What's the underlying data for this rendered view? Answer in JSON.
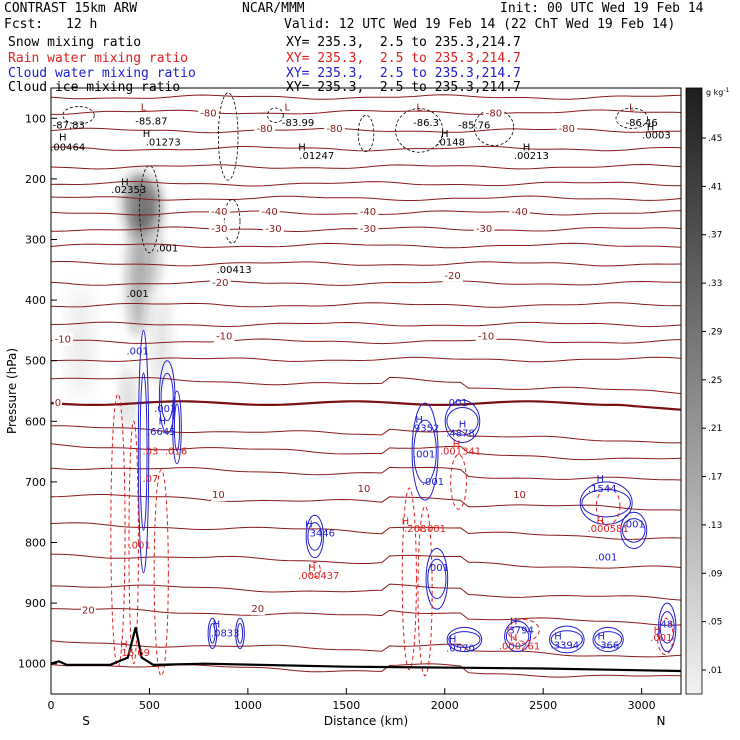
{
  "header": {
    "model": "CONTRAST 15km ARW",
    "org": "NCAR/MMM",
    "init": "Init: 00 UTC Wed 19 Feb 14",
    "fcst_label": "Fcst:",
    "fcst_value": "12 h",
    "valid": "Valid: 12 UTC Wed 19 Feb 14 (22 ChT Wed 19 Feb 14)",
    "legend": [
      {
        "label": "Snow mixing ratio",
        "xy": "XY= 235.3,  2.5 to 235.3,214.7",
        "color": "#000000"
      },
      {
        "label": "Rain water mixing ratio",
        "xy": "XY= 235.3,  2.5 to 235.3,214.7",
        "color": "#e02020"
      },
      {
        "label": "Cloud water mixing ratio",
        "xy": "XY= 235.3,  2.5 to 235.3,214.7",
        "color": "#2020d0"
      },
      {
        "label": "Cloud ice mixing ratio",
        "xy": "XY= 235.3,  2.5 to 235.3,214.7",
        "color": "#000000"
      }
    ]
  },
  "chart_data": {
    "type": "contour cross-section",
    "xlabel": "Distance (km)",
    "ylabel": "Pressure (hPa)",
    "xlim": [
      0,
      3200
    ],
    "ylim": [
      1050,
      50
    ],
    "x_ticks": [
      0,
      500,
      1000,
      1500,
      2000,
      2500,
      3000
    ],
    "y_ticks": [
      100,
      200,
      300,
      400,
      500,
      600,
      700,
      800,
      900,
      1000
    ],
    "x_end_labels": {
      "left": "S",
      "right": "N"
    },
    "colorbar": {
      "unit": "g kg",
      "unit_sup": "-1",
      "ticks": [
        ".45",
        ".41",
        ".37",
        ".33",
        ".29",
        ".25",
        ".21",
        ".17",
        ".13",
        ".09",
        ".05",
        ".01"
      ]
    },
    "temperature_labels": [
      {
        "text": "-80",
        "x": 800,
        "p": 92
      },
      {
        "text": "-80",
        "x": 1085,
        "p": 118
      },
      {
        "text": "-80",
        "x": 1440,
        "p": 118
      },
      {
        "text": "-80",
        "x": 2250,
        "p": 92
      },
      {
        "text": "-80",
        "x": 2620,
        "p": 118
      },
      {
        "text": "-40",
        "x": 855,
        "p": 255
      },
      {
        "text": "-40",
        "x": 1110,
        "p": 255
      },
      {
        "text": "-40",
        "x": 1610,
        "p": 255
      },
      {
        "text": "-40",
        "x": 2380,
        "p": 255
      },
      {
        "text": "-30",
        "x": 855,
        "p": 283
      },
      {
        "text": "-30",
        "x": 1130,
        "p": 283
      },
      {
        "text": "-30",
        "x": 1610,
        "p": 283
      },
      {
        "text": "-30",
        "x": 2200,
        "p": 283
      },
      {
        "text": "-20",
        "x": 860,
        "p": 372
      },
      {
        "text": "-20",
        "x": 2040,
        "p": 360
      },
      {
        "text": "-10",
        "x": 60,
        "p": 465
      },
      {
        "text": "-10",
        "x": 880,
        "p": 460
      },
      {
        "text": "-10",
        "x": 2210,
        "p": 460
      },
      {
        "text": "0",
        "x": 35,
        "p": 570
      },
      {
        "text": "10",
        "x": 850,
        "p": 722
      },
      {
        "text": "10",
        "x": 1590,
        "p": 712
      },
      {
        "text": "10",
        "x": 2380,
        "p": 722
      },
      {
        "text": "20",
        "x": 190,
        "p": 912
      },
      {
        "text": "20",
        "x": 1050,
        "p": 910
      }
    ],
    "low_centers": [
      {
        "text": "L",
        "x": 470,
        "p": 82
      },
      {
        "text": "L",
        "x": 1200,
        "p": 82
      },
      {
        "text": "L",
        "x": 1870,
        "p": 82
      },
      {
        "text": "L",
        "x": 2950,
        "p": 82
      }
    ],
    "cloud_ice_labels": [
      {
        "text": "-87.83",
        "x": 90,
        "p": 112
      },
      {
        "text": "-85.87",
        "x": 510,
        "p": 105
      },
      {
        "text": "-83.99",
        "x": 1255,
        "p": 108
      },
      {
        "text": "-86.3",
        "x": 1905,
        "p": 108
      },
      {
        "text": "-85.76",
        "x": 2150,
        "p": 112
      },
      {
        "text": "-86.46",
        "x": 3000,
        "p": 108
      },
      {
        "text": ".00464",
        "x": 85,
        "p": 148
      },
      {
        "text": ".01273",
        "x": 570,
        "p": 140
      },
      {
        "text": ".01247",
        "x": 1350,
        "p": 162
      },
      {
        "text": ".0148",
        "x": 2030,
        "p": 140
      },
      {
        "text": ".00213",
        "x": 2440,
        "p": 162
      },
      {
        "text": ".0003",
        "x": 3075,
        "p": 128
      },
      {
        "text": ".02353",
        "x": 395,
        "p": 218
      },
      {
        "text": ".001",
        "x": 590,
        "p": 315
      },
      {
        "text": ".00413",
        "x": 930,
        "p": 350
      },
      {
        "text": ".001",
        "x": 440,
        "p": 390
      }
    ],
    "cloud_water_labels": [
      {
        "text": ".001",
        "x": 440,
        "p": 485
      },
      {
        "text": ".001",
        "x": 580,
        "p": 580
      },
      {
        "text": ".6645",
        "x": 560,
        "p": 618
      },
      {
        "text": ".3446",
        "x": 1370,
        "p": 785
      },
      {
        "text": ".0833",
        "x": 885,
        "p": 950
      },
      {
        "text": ".9352",
        "x": 1900,
        "p": 612
      },
      {
        "text": ".4878",
        "x": 2080,
        "p": 620
      },
      {
        "text": ".001",
        "x": 2060,
        "p": 570
      },
      {
        "text": ".001",
        "x": 1895,
        "p": 655
      },
      {
        "text": ".001",
        "x": 1940,
        "p": 700
      },
      {
        "text": ".001",
        "x": 1965,
        "p": 842
      },
      {
        "text": ".0570",
        "x": 2080,
        "p": 975
      },
      {
        "text": ".3794",
        "x": 2380,
        "p": 945
      },
      {
        "text": ".3394",
        "x": 2610,
        "p": 970
      },
      {
        "text": ".366",
        "x": 2830,
        "p": 970
      },
      {
        "text": ".1544",
        "x": 2800,
        "p": 712
      },
      {
        "text": ".001",
        "x": 2960,
        "p": 770
      },
      {
        "text": ".001",
        "x": 2820,
        "p": 825
      },
      {
        "text": ".48",
        "x": 3120,
        "p": 935
      }
    ],
    "rain_labels": [
      {
        "text": ".03",
        "x": 505,
        "p": 650
      },
      {
        "text": ".016",
        "x": 635,
        "p": 650
      },
      {
        "text": ".07",
        "x": 505,
        "p": 695
      },
      {
        "text": ".001",
        "x": 450,
        "p": 805
      },
      {
        "text": ".000437",
        "x": 1360,
        "p": 855
      },
      {
        "text": ".001341",
        "x": 2080,
        "p": 650
      },
      {
        "text": ".208",
        "x": 1850,
        "p": 778
      },
      {
        "text": ".001",
        "x": 1950,
        "p": 778
      },
      {
        "text": ".000581",
        "x": 2830,
        "p": 778
      },
      {
        "text": "16.69",
        "x": 430,
        "p": 982
      },
      {
        "text": ".000261",
        "x": 2380,
        "p": 972
      },
      {
        "text": ".001",
        "x": 3100,
        "p": 958
      }
    ],
    "h_markers": [
      {
        "text": "H",
        "x": 60,
        "p": 132,
        "color": "#000000"
      },
      {
        "text": "H",
        "x": 485,
        "p": 126,
        "color": "#000000"
      },
      {
        "text": "H",
        "x": 1275,
        "p": 148,
        "color": "#000000"
      },
      {
        "text": "H",
        "x": 2000,
        "p": 126,
        "color": "#000000"
      },
      {
        "text": "H",
        "x": 2415,
        "p": 148,
        "color": "#000000"
      },
      {
        "text": "H",
        "x": 3045,
        "p": 115,
        "color": "#000000"
      },
      {
        "text": "H",
        "x": 375,
        "p": 206,
        "color": "#000000"
      },
      {
        "text": "H",
        "x": 565,
        "p": 600,
        "color": "#2020d0"
      },
      {
        "text": "H",
        "x": 1310,
        "p": 770,
        "color": "#2020d0"
      },
      {
        "text": "H",
        "x": 840,
        "p": 935,
        "color": "#2020d0"
      },
      {
        "text": "H",
        "x": 1870,
        "p": 598,
        "color": "#2020d0"
      },
      {
        "text": "H",
        "x": 2090,
        "p": 605,
        "color": "#2020d0"
      },
      {
        "text": "H",
        "x": 2040,
        "p": 960,
        "color": "#2020d0"
      },
      {
        "text": "H",
        "x": 2350,
        "p": 930,
        "color": "#2020d0"
      },
      {
        "text": "H",
        "x": 2575,
        "p": 955,
        "color": "#2020d0"
      },
      {
        "text": "H",
        "x": 2795,
        "p": 955,
        "color": "#2020d0"
      },
      {
        "text": "H",
        "x": 2790,
        "p": 695,
        "color": "#2020d0"
      },
      {
        "text": "H",
        "x": 1325,
        "p": 842,
        "color": "#e02020"
      },
      {
        "text": "H",
        "x": 2060,
        "p": 638,
        "color": "#e02020"
      },
      {
        "text": "H",
        "x": 1800,
        "p": 765,
        "color": "#e02020"
      },
      {
        "text": "H",
        "x": 2790,
        "p": 765,
        "color": "#e02020"
      },
      {
        "text": "H",
        "x": 370,
        "p": 968,
        "color": "#e02020"
      },
      {
        "text": "H",
        "x": 2350,
        "p": 958,
        "color": "#e02020"
      },
      {
        "text": "H",
        "x": 3080,
        "p": 945,
        "color": "#e02020"
      }
    ],
    "temperature_isotherms_p_at_left": [
      65,
      90,
      120,
      150,
      180,
      208,
      232,
      256,
      283,
      310,
      340,
      372,
      408,
      440,
      468,
      498,
      528,
      610,
      640,
      675,
      722,
      770,
      820,
      870,
      910,
      965,
      1000
    ],
    "zero_isotherm_p": 570,
    "terrain": [
      {
        "x": 0,
        "p": 1000
      },
      {
        "x": 40,
        "p": 996
      },
      {
        "x": 80,
        "p": 1002
      },
      {
        "x": 300,
        "p": 1002
      },
      {
        "x": 390,
        "p": 990
      },
      {
        "x": 430,
        "p": 940
      },
      {
        "x": 460,
        "p": 990
      },
      {
        "x": 520,
        "p": 1002
      },
      {
        "x": 780,
        "p": 1000
      },
      {
        "x": 1500,
        "p": 1005
      },
      {
        "x": 2500,
        "p": 1008
      },
      {
        "x": 3200,
        "p": 1012
      }
    ]
  }
}
